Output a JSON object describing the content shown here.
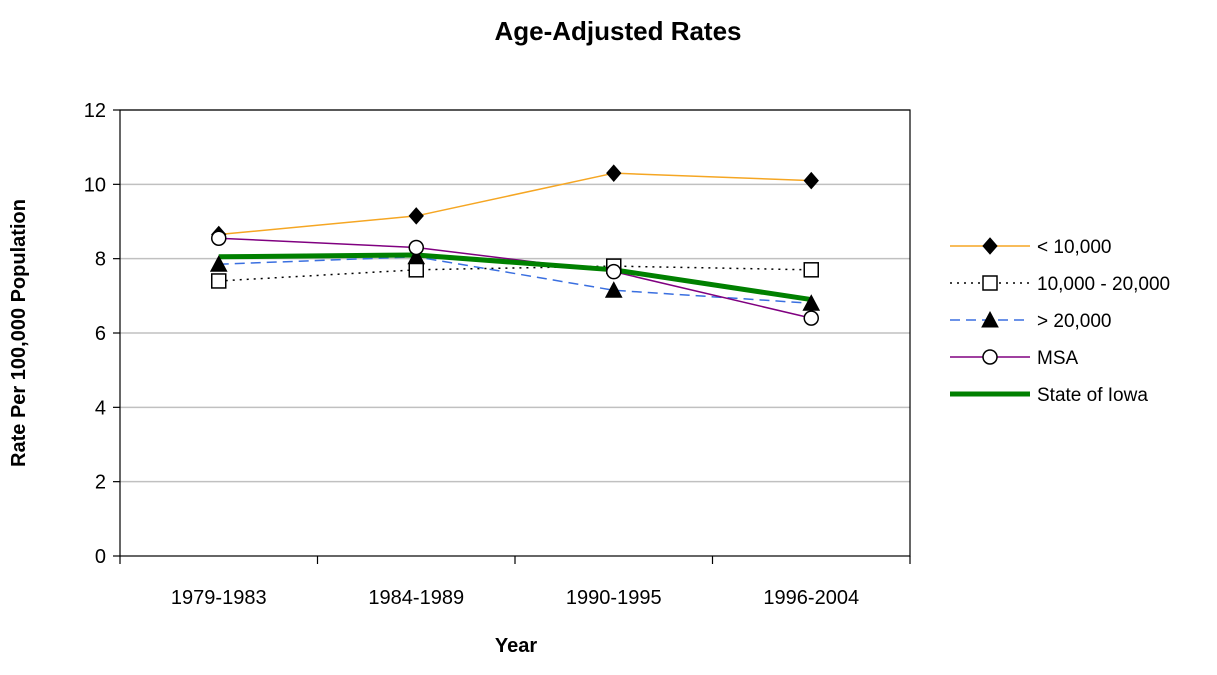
{
  "chart_data": {
    "type": "line",
    "title": "Age-Adjusted Rates",
    "xlabel": "Year",
    "ylabel": "Rate Per 100,000 Population",
    "categories": [
      "1979-1983",
      "1984-1989",
      "1990-1995",
      "1996-2004"
    ],
    "ylim": [
      0,
      12
    ],
    "yticks": [
      0,
      2,
      4,
      6,
      8,
      10,
      12
    ],
    "grid": true,
    "legend": "right",
    "series": [
      {
        "name": "< 10,000",
        "values": [
          8.65,
          9.15,
          10.3,
          10.1
        ],
        "color": "#f5a623",
        "dash": "solid",
        "marker": "diamond-filled",
        "width": 1.5
      },
      {
        "name": "10,000 - 20,000",
        "values": [
          7.4,
          7.7,
          7.8,
          7.7
        ],
        "color": "#000000",
        "dash": "dotted",
        "marker": "square-open",
        "width": 1.5
      },
      {
        "name": "> 20,000",
        "values": [
          7.85,
          8.05,
          7.15,
          6.8
        ],
        "color": "#3a6fe0",
        "dash": "dashed",
        "marker": "triangle-filled",
        "width": 1.5
      },
      {
        "name": "MSA",
        "values": [
          8.55,
          8.3,
          7.65,
          6.4
        ],
        "color": "#800080",
        "dash": "solid",
        "marker": "circle-open",
        "width": 1.5
      },
      {
        "name": "State of Iowa",
        "values": [
          8.05,
          8.1,
          7.7,
          6.9
        ],
        "color": "#008000",
        "dash": "solid",
        "marker": "none",
        "width": 5
      }
    ]
  }
}
